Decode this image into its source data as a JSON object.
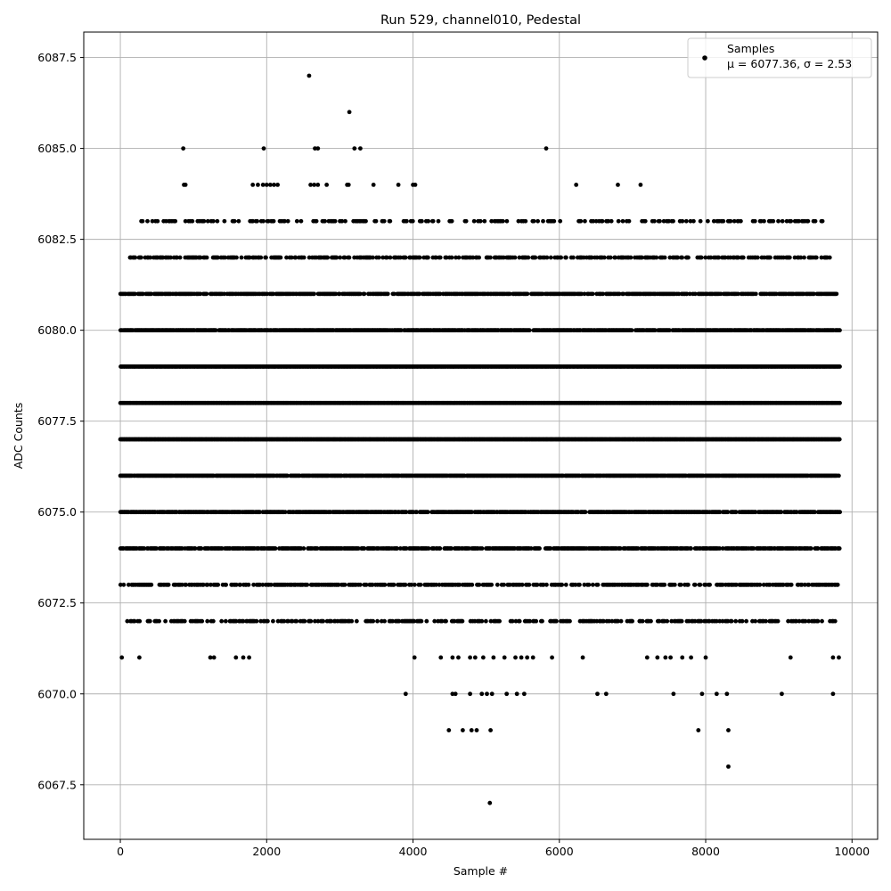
{
  "chart_data": {
    "type": "scatter",
    "title": "Run 529, channel010, Pedestal",
    "xlabel": "Sample #",
    "ylabel": "ADC Counts",
    "xlim": [
      -500,
      10350
    ],
    "ylim": [
      6066,
      6088.2
    ],
    "xticks": [
      0,
      2000,
      4000,
      6000,
      8000,
      10000
    ],
    "xtick_labels": [
      "0",
      "2000",
      "4000",
      "6000",
      "8000",
      "10000"
    ],
    "yticks": [
      6067.5,
      6070.0,
      6072.5,
      6075.0,
      6077.5,
      6080.0,
      6082.5,
      6085.0,
      6087.5
    ],
    "ytick_labels": [
      "6067.5",
      "6070.0",
      "6072.5",
      "6075.0",
      "6077.5",
      "6080.0",
      "6082.5",
      "6085.0",
      "6087.5"
    ],
    "grid": true,
    "marker_color": "#000000",
    "legend": {
      "position": "top-right",
      "entries": [
        {
          "label": "Samples",
          "sublabel": "μ = 6077.36, σ = 2.53"
        }
      ]
    },
    "series": [
      {
        "name": "Samples",
        "x_range": [
          0,
          9840
        ],
        "num_points": 9840,
        "levels": [
          6067,
          6068,
          6069,
          6070,
          6071,
          6072,
          6073,
          6074,
          6075,
          6076,
          6077,
          6078,
          6079,
          6080,
          6081,
          6082,
          6083,
          6084,
          6085,
          6086,
          6087
        ],
        "mean": 6077.36,
        "std": 2.53,
        "points": [
          [
            20,
            6071
          ],
          [
            260,
            6071
          ],
          [
            1230,
            6071
          ],
          [
            1280,
            6071
          ],
          [
            1580,
            6071
          ],
          [
            1680,
            6071
          ],
          [
            1760,
            6071
          ],
          [
            4020,
            6071
          ],
          [
            4380,
            6071
          ],
          [
            4540,
            6071
          ],
          [
            4620,
            6071
          ],
          [
            4780,
            6071
          ],
          [
            4850,
            6071
          ],
          [
            4960,
            6071
          ],
          [
            5100,
            6071
          ],
          [
            5250,
            6071
          ],
          [
            5400,
            6071
          ],
          [
            5480,
            6071
          ],
          [
            5560,
            6071
          ],
          [
            5640,
            6071
          ],
          [
            5900,
            6071
          ],
          [
            6320,
            6071
          ],
          [
            7200,
            6071
          ],
          [
            7340,
            6071
          ],
          [
            7450,
            6071
          ],
          [
            7520,
            6071
          ],
          [
            7680,
            6071
          ],
          [
            7800,
            6071
          ],
          [
            8000,
            6071
          ],
          [
            9160,
            6071
          ],
          [
            9740,
            6071
          ],
          [
            9820,
            6071
          ],
          [
            3900,
            6070
          ],
          [
            4540,
            6070
          ],
          [
            4580,
            6070
          ],
          [
            4780,
            6070
          ],
          [
            4940,
            6070
          ],
          [
            5010,
            6070
          ],
          [
            5080,
            6070
          ],
          [
            5280,
            6070
          ],
          [
            5420,
            6070
          ],
          [
            5520,
            6070
          ],
          [
            6520,
            6070
          ],
          [
            6640,
            6070
          ],
          [
            7560,
            6070
          ],
          [
            7950,
            6070
          ],
          [
            8150,
            6070
          ],
          [
            8290,
            6070
          ],
          [
            9040,
            6070
          ],
          [
            9740,
            6070
          ],
          [
            4490,
            6069
          ],
          [
            4680,
            6069
          ],
          [
            4800,
            6069
          ],
          [
            4870,
            6069
          ],
          [
            5060,
            6069
          ],
          [
            7900,
            6069
          ],
          [
            8310,
            6069
          ],
          [
            8310,
            6068
          ],
          [
            5050,
            6067
          ],
          [
            2580,
            6087
          ],
          [
            3130,
            6086
          ],
          [
            860,
            6085
          ],
          [
            1960,
            6085
          ],
          [
            2660,
            6085
          ],
          [
            2700,
            6085
          ],
          [
            3200,
            6085
          ],
          [
            3280,
            6085
          ],
          [
            5820,
            6085
          ],
          [
            870,
            6084
          ],
          [
            890,
            6084
          ],
          [
            1810,
            6084
          ],
          [
            1880,
            6084
          ],
          [
            1950,
            6084
          ],
          [
            2000,
            6084
          ],
          [
            2050,
            6084
          ],
          [
            2100,
            6084
          ],
          [
            2150,
            6084
          ],
          [
            2600,
            6084
          ],
          [
            2650,
            6084
          ],
          [
            2700,
            6084
          ],
          [
            2820,
            6084
          ],
          [
            3100,
            6084
          ],
          [
            3120,
            6084
          ],
          [
            3460,
            6084
          ],
          [
            3800,
            6084
          ],
          [
            4000,
            6084
          ],
          [
            4030,
            6084
          ],
          [
            6230,
            6084
          ],
          [
            6800,
            6084
          ],
          [
            7110,
            6084
          ]
        ],
        "band_ranges": [
          {
            "y": 6080,
            "from": 0,
            "to": 9840,
            "density": 0.9
          },
          {
            "y": 6079,
            "from": 0,
            "to": 9840,
            "density": 1.0
          },
          {
            "y": 6078,
            "from": 0,
            "to": 9840,
            "density": 1.0
          },
          {
            "y": 6077,
            "from": 0,
            "to": 9840,
            "density": 1.0
          },
          {
            "y": 6076,
            "from": 0,
            "to": 9840,
            "density": 0.95
          },
          {
            "y": 6075,
            "from": 0,
            "to": 9840,
            "density": 0.85
          },
          {
            "y": 6074,
            "from": 0,
            "to": 9840,
            "density": 0.8
          },
          {
            "y": 6081,
            "from": 0,
            "to": 9840,
            "density": 0.75
          },
          {
            "y": 6073,
            "from": 0,
            "to": 9840,
            "density": 0.55
          },
          {
            "y": 6082,
            "from": 100,
            "to": 9700,
            "density": 0.5
          },
          {
            "y": 6072,
            "from": 80,
            "to": 9820,
            "density": 0.45
          },
          {
            "y": 6083,
            "from": 200,
            "to": 9600,
            "density": 0.3
          }
        ]
      }
    ]
  }
}
